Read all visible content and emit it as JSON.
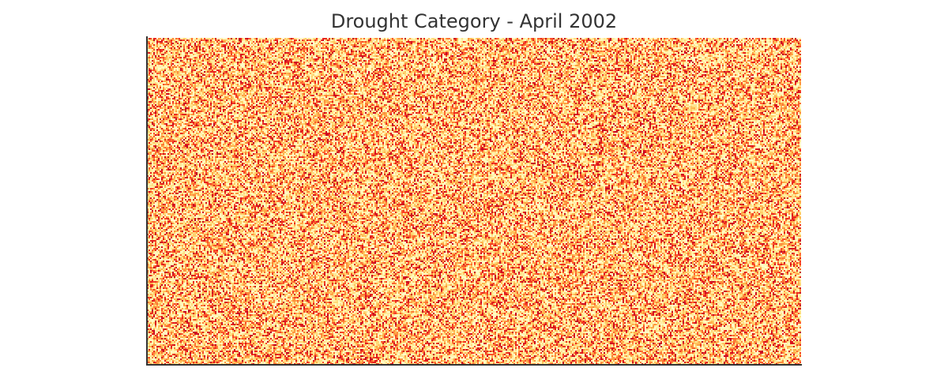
{
  "chart_data": {
    "type": "heatmap",
    "title": "Drought Category - April 2002",
    "xlabel": "",
    "ylabel": "",
    "grid": false,
    "legend": "none",
    "colormap": "YlOrRd",
    "colors": [
      "#ffffcc",
      "#ffeda0",
      "#fed976",
      "#feb24c",
      "#fd8d3c",
      "#fc4e2a",
      "#e31a1c",
      "#bd0026"
    ],
    "value_range": [
      0,
      1
    ],
    "rows": 207,
    "cols": 414,
    "distribution": "uniform-random",
    "seed": 2002
  }
}
